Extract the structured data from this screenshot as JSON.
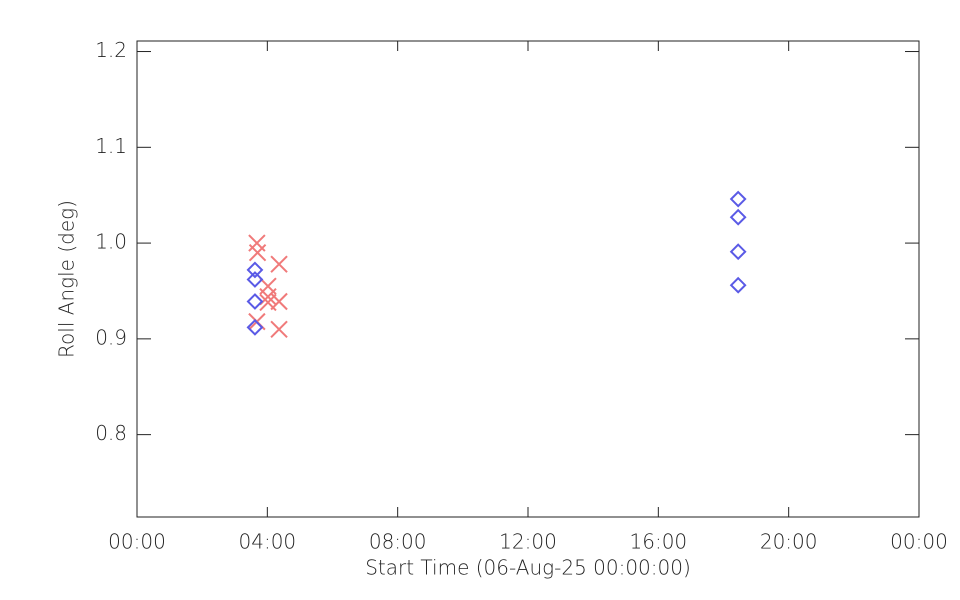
{
  "chart_data": {
    "type": "scatter",
    "xlabel": "Start Time (06-Aug-25 00:00:00)",
    "ylabel": "Roll Angle (deg)",
    "xlim": [
      0,
      24
    ],
    "xticks": [
      {
        "value": 0,
        "label": "00:00"
      },
      {
        "value": 4,
        "label": "04:00"
      },
      {
        "value": 8,
        "label": "08:00"
      },
      {
        "value": 12,
        "label": "12:00"
      },
      {
        "value": 16,
        "label": "16:00"
      },
      {
        "value": 20,
        "label": "20:00"
      },
      {
        "value": 24,
        "label": "00:00"
      }
    ],
    "ylim": [
      0.714,
      1.211
    ],
    "yticks": [
      0.8,
      0.9,
      1.0,
      1.1,
      1.2
    ],
    "ytick_labels": [
      "0.8",
      "0.9",
      "1.0",
      "1.1",
      "1.2"
    ],
    "series": [
      {
        "color": "#f07a7a",
        "marker": "x",
        "x": [
          3.68,
          3.7,
          3.68,
          4.02,
          4.02,
          4.02,
          4.36,
          4.36,
          4.36
        ],
        "values": [
          1.0,
          0.99,
          0.918,
          0.955,
          0.944,
          0.938,
          0.978,
          0.939,
          0.91
        ]
      },
      {
        "color": "#5a5ae6",
        "marker": "diamond",
        "x": [
          3.62,
          3.62,
          3.62,
          3.62,
          18.45,
          18.45,
          18.45,
          18.45
        ],
        "values": [
          0.972,
          0.962,
          0.939,
          0.912,
          1.046,
          1.027,
          0.991,
          0.956
        ]
      }
    ]
  }
}
